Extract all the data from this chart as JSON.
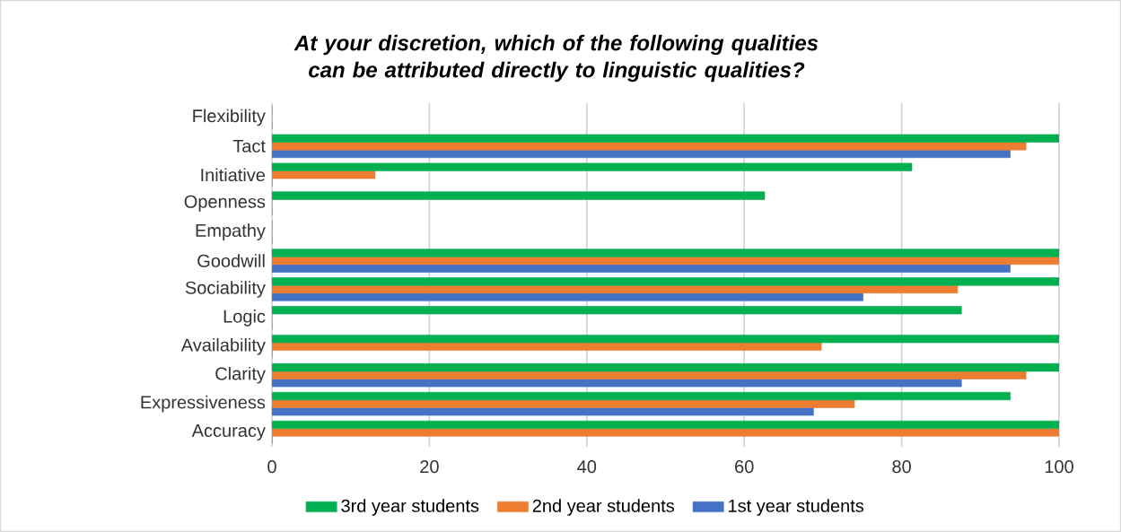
{
  "chart_data": {
    "type": "bar",
    "orientation": "horizontal",
    "title": "At your discretion, which of the following qualities can be attributed directly to linguistic qualities?",
    "categories": [
      "Flexibility",
      "Tact",
      "Initiative",
      "Openness",
      "Empathy",
      "Goodwill",
      "Sociability",
      "Logic",
      "Availability",
      "Clarity",
      "Expressiveness",
      "Accuracy"
    ],
    "series": [
      {
        "name": "3rd year students",
        "color": "#00b050",
        "values": [
          0,
          100,
          81.3,
          62.6,
          0,
          100,
          100,
          87.6,
          100,
          100,
          93.8,
          100
        ]
      },
      {
        "name": "2nd year students",
        "color": "#ed7d31",
        "values": [
          0,
          95.8,
          13.1,
          0,
          0,
          100,
          87.1,
          0,
          69.8,
          95.8,
          74.0,
          100
        ]
      },
      {
        "name": "1st year students",
        "color": "#4472c4",
        "values": [
          0,
          93.8,
          0,
          0,
          0,
          93.8,
          75.1,
          0,
          0,
          87.6,
          68.8,
          0
        ]
      }
    ],
    "xlim": [
      0,
      100
    ],
    "xticks": [
      0,
      20,
      40,
      60,
      80,
      100
    ],
    "grid": "x",
    "legend": "bottom"
  }
}
